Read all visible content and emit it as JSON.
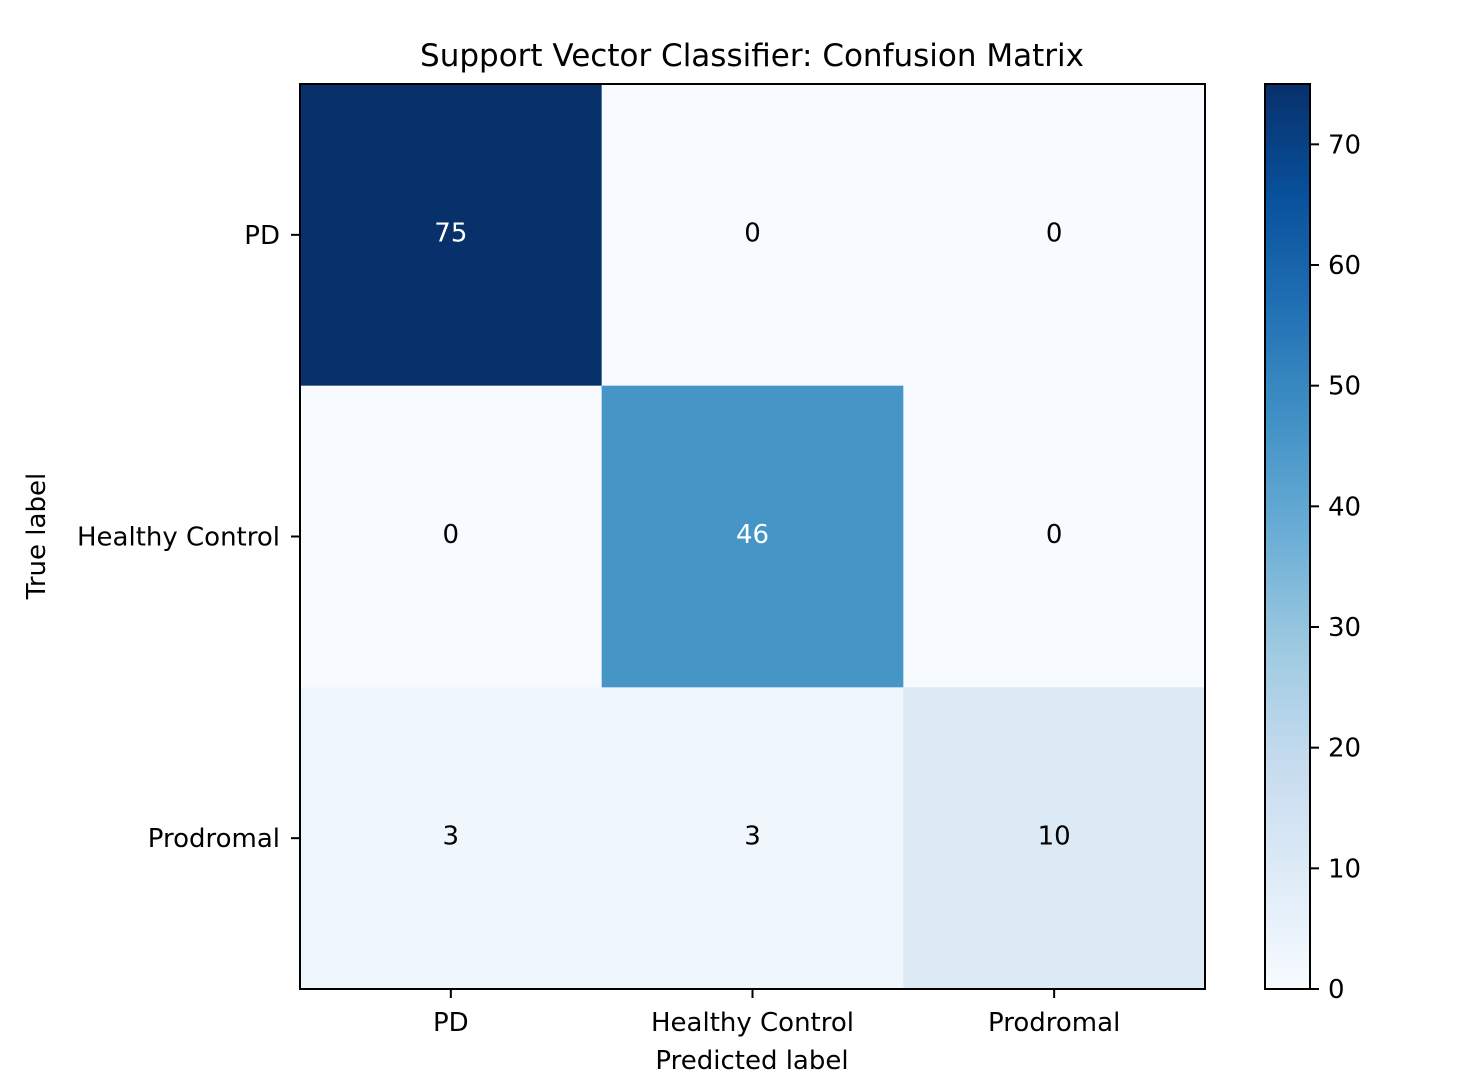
{
  "chart_data": {
    "type": "heatmap",
    "title": "Support Vector Classifier: Confusion Matrix",
    "xlabel": "Predicted label",
    "ylabel": "True label",
    "x_categories": [
      "PD",
      "Healthy Control",
      "Prodromal"
    ],
    "y_categories": [
      "PD",
      "Healthy Control",
      "Prodromal"
    ],
    "matrix": [
      [
        75,
        0,
        0
      ],
      [
        0,
        46,
        0
      ],
      [
        3,
        3,
        10
      ]
    ],
    "colormap": "Blues",
    "colorbar": {
      "vmin": 0,
      "vmax": 75,
      "ticks": [
        0,
        10,
        20,
        30,
        40,
        50,
        60,
        70
      ]
    },
    "text_color_dark": "#000000",
    "text_color_light": "#ffffff"
  }
}
